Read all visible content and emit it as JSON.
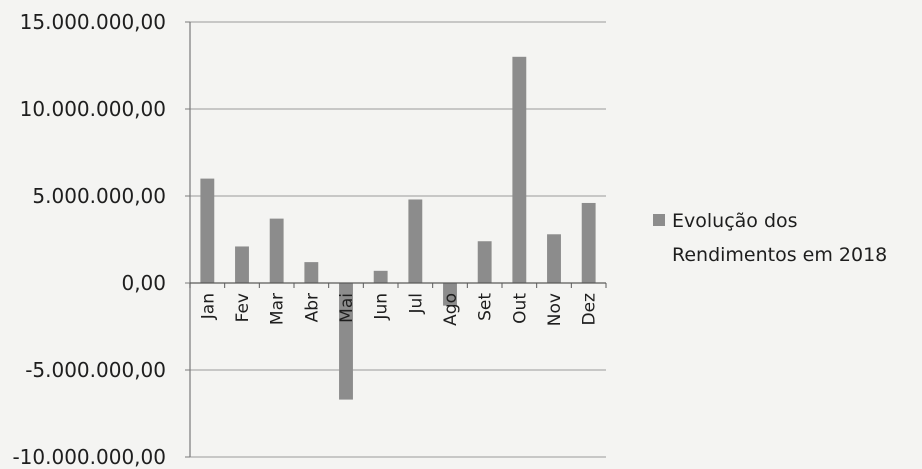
{
  "chart_data": {
    "type": "bar",
    "categories": [
      "Jan",
      "Fev",
      "Mar",
      "Abr",
      "Mai",
      "Jun",
      "Jul",
      "Ago",
      "Set",
      "Out",
      "Nov",
      "Dez"
    ],
    "series": [
      {
        "name": "Evolução dos Rendimentos em 2018",
        "values": [
          6000000,
          2100000,
          3700000,
          1200000,
          -6700000,
          700000,
          4800000,
          -1300000,
          2400000,
          13000000,
          2800000,
          4600000
        ],
        "color": "#8c8c8c"
      }
    ],
    "ylim": [
      -10000000,
      15000000
    ],
    "yticks": [
      15000000,
      10000000,
      5000000,
      0,
      -5000000,
      -10000000
    ],
    "ytick_labels": [
      "15.000.000,00",
      "10.000.000,00",
      "5.000.000,00",
      "0,00",
      "-5.000.000,00",
      "-10.000.000,00"
    ],
    "grid": true,
    "legend": {
      "position": "right",
      "lines": [
        "Evolução dos",
        "Rendimentos em 2018"
      ]
    },
    "title": "",
    "xlabel": "",
    "ylabel": ""
  }
}
